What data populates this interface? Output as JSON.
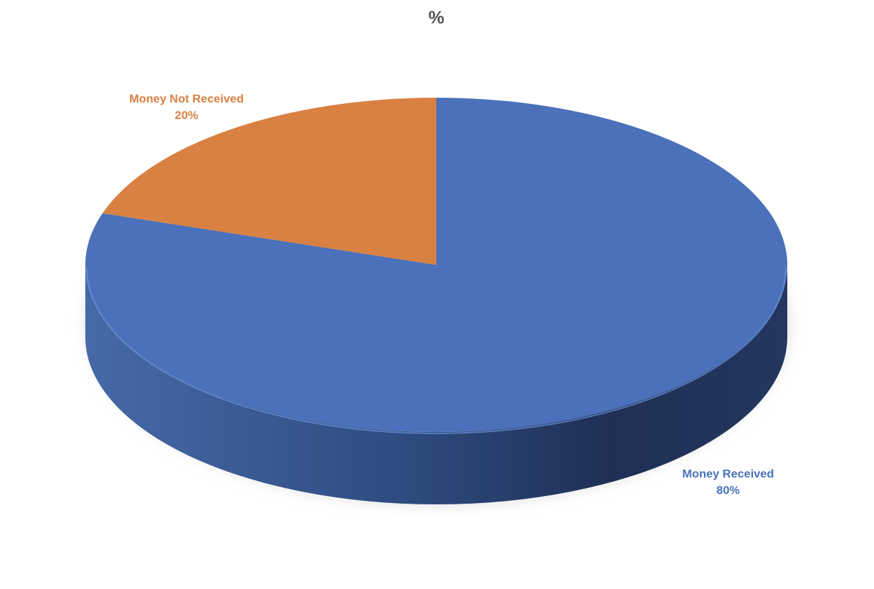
{
  "chart_data": {
    "type": "pie",
    "title": "%",
    "three_d": true,
    "categories": [
      "Money Received",
      "Money Not Received"
    ],
    "values": [
      80,
      20
    ],
    "value_labels": [
      "80%",
      "20%"
    ],
    "colors": [
      "#4a71b9",
      "#d98142"
    ],
    "side_colors": [
      "#2b4779",
      "#8e5128"
    ],
    "title_color": "#555555",
    "legend": "none"
  }
}
